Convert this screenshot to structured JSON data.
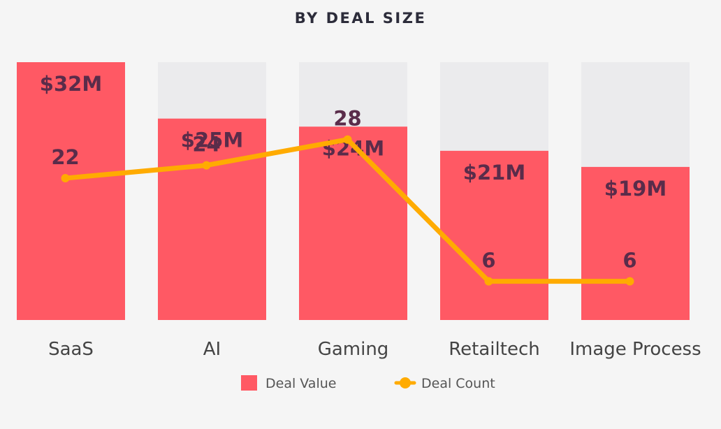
{
  "chart_data": {
    "type": "bar",
    "title": "BY DEAL SIZE",
    "categories": [
      "SaaS",
      "AI",
      "Gaming",
      "Retailtech",
      "Image Process"
    ],
    "series": [
      {
        "name": "Deal Value",
        "type": "bar",
        "values": [
          32,
          25,
          24,
          21,
          19
        ],
        "labels": [
          "$32M",
          "$25M",
          "$24M",
          "$21M",
          "$19M"
        ],
        "color": "#ff5964"
      },
      {
        "name": "Deal Count",
        "type": "line",
        "values": [
          22,
          24,
          28,
          6,
          6
        ],
        "labels": [
          "22",
          "24",
          "28",
          "6",
          "6"
        ],
        "color": "#ffab00"
      }
    ],
    "bar_ylim": [
      0,
      32
    ],
    "line_ylim": [
      0,
      40
    ],
    "background_bar_color": "#ebebed",
    "grid": false,
    "legend_position": "bottom-center"
  }
}
